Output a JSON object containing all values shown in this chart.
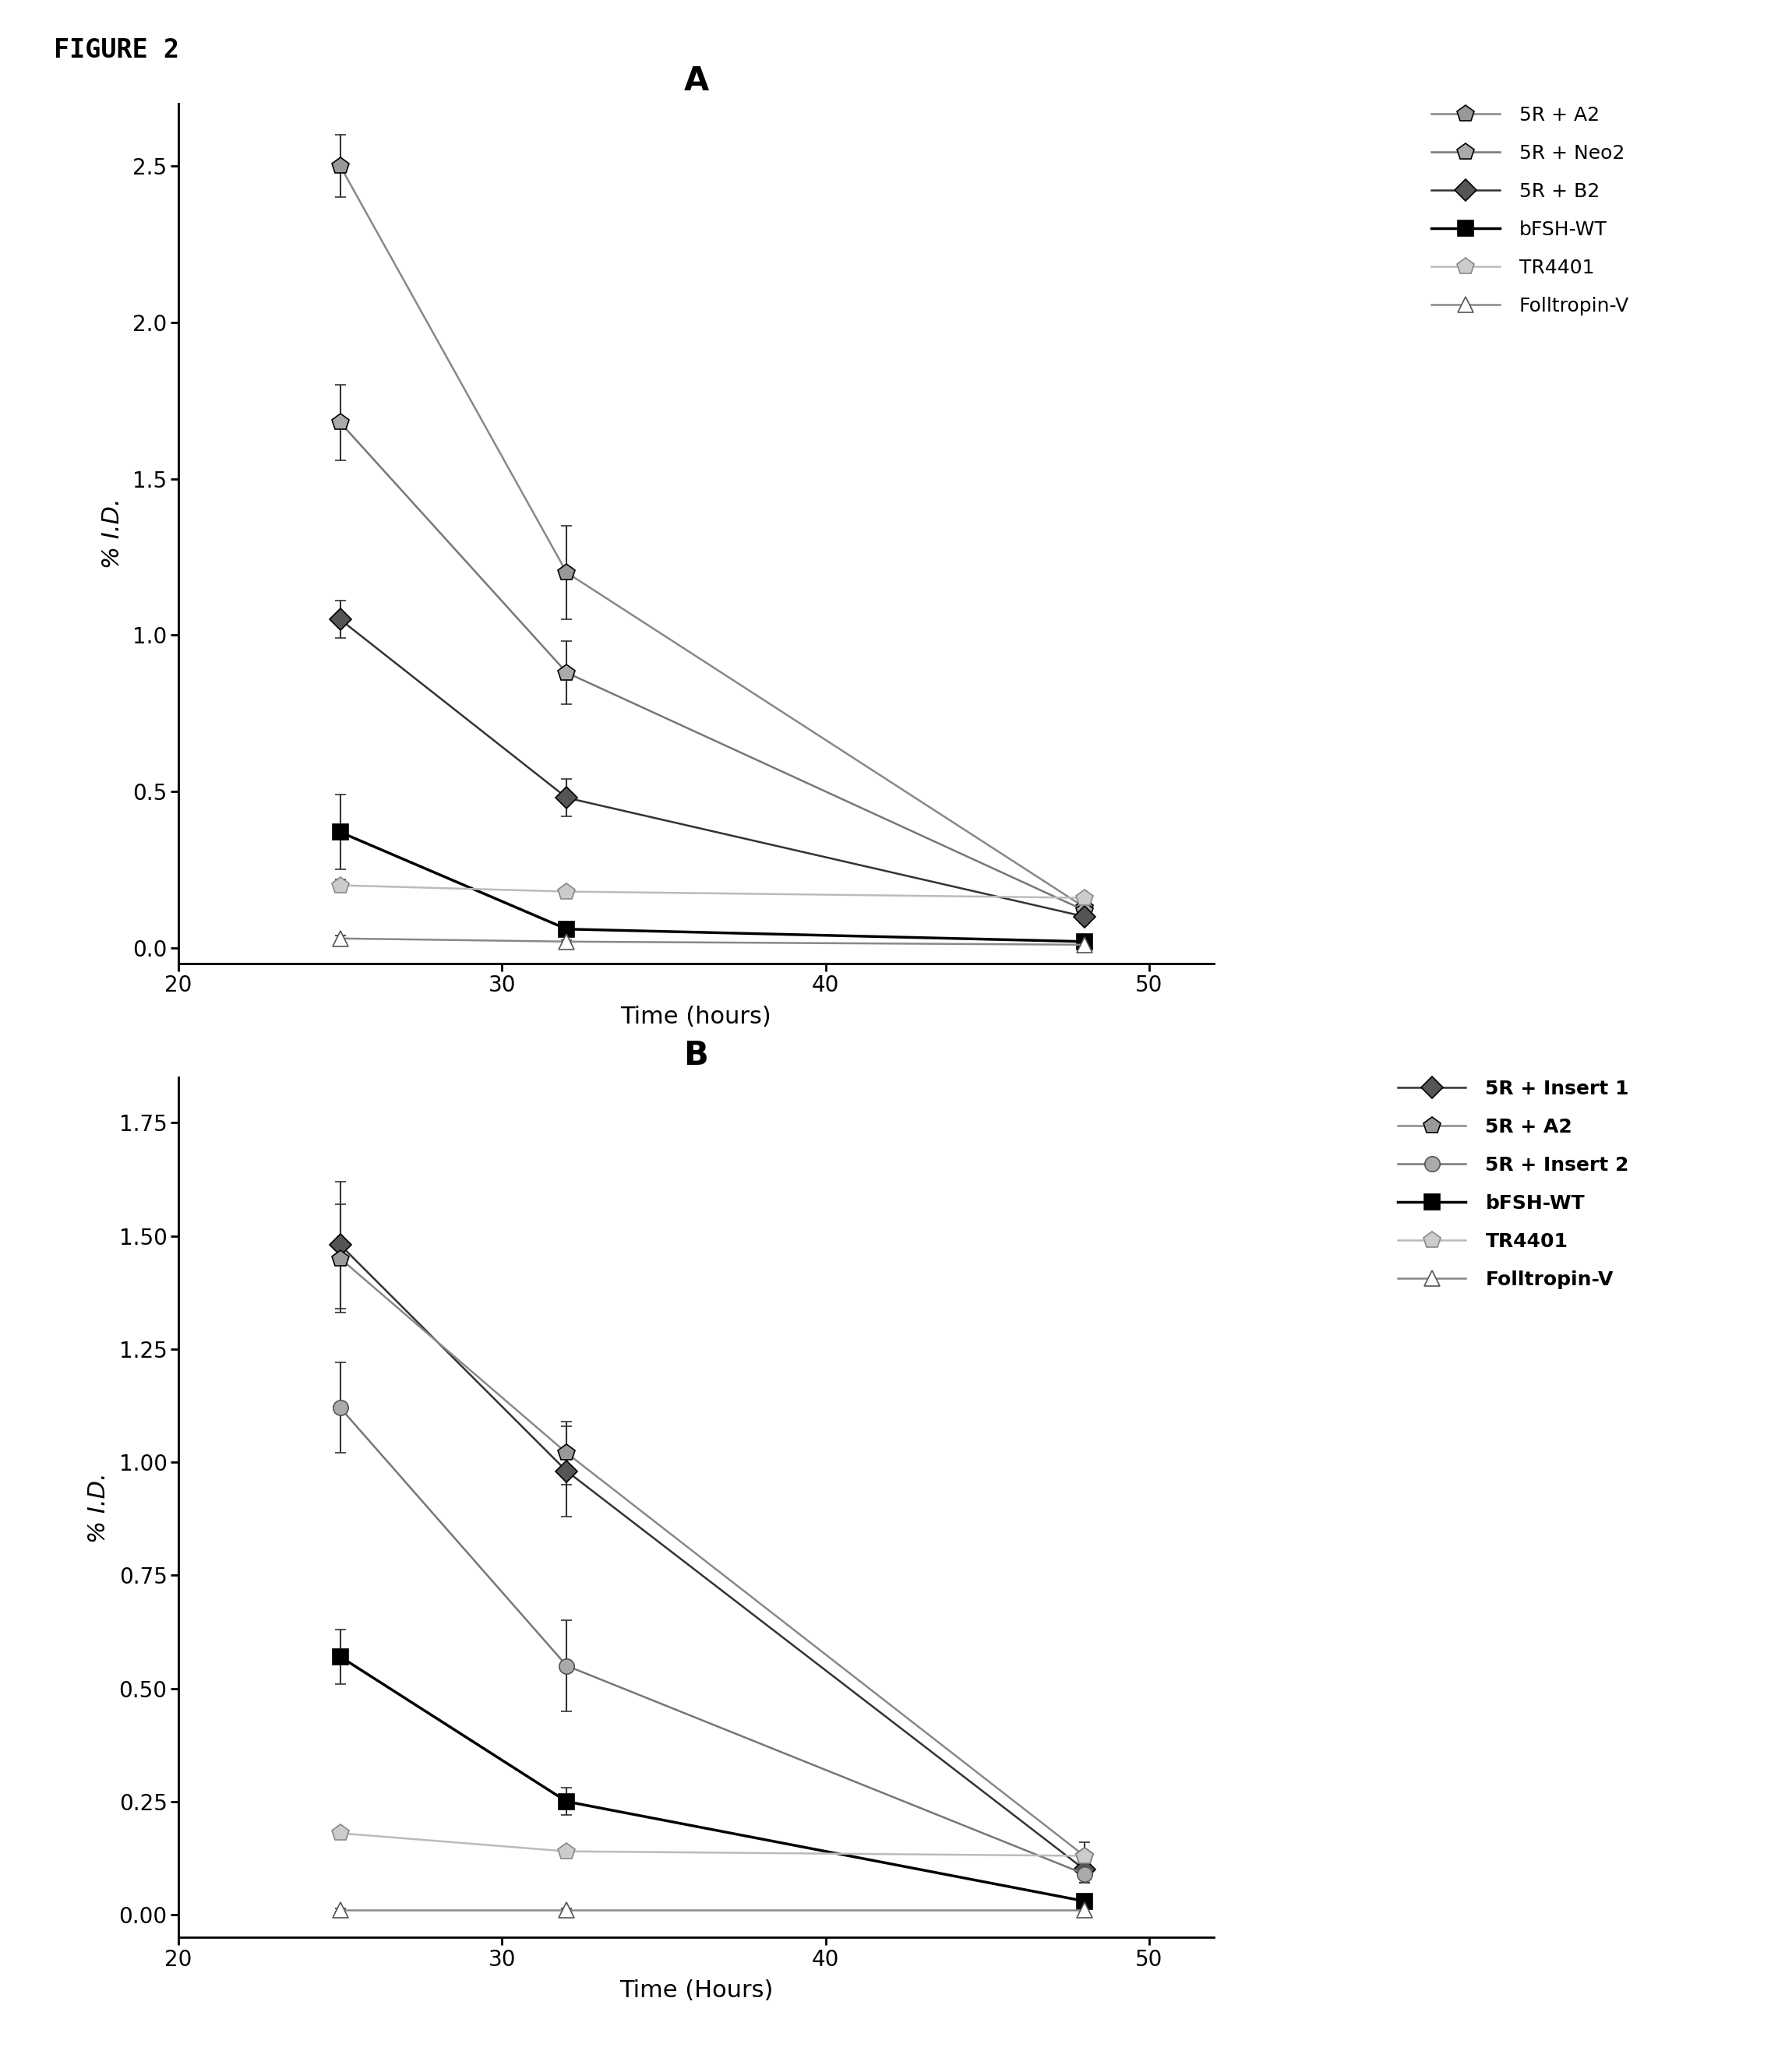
{
  "panel_A": {
    "title": "A",
    "xlabel": "Time (hours)",
    "ylabel": "% I.D.",
    "xlim": [
      20,
      52
    ],
    "xticks": [
      20,
      30,
      40,
      50
    ],
    "ylim": [
      -0.05,
      2.7
    ],
    "yticks": [
      0.0,
      0.5,
      1.0,
      1.5,
      2.0,
      2.5
    ],
    "series": [
      {
        "label": "5R + A2",
        "x": [
          25,
          32,
          48
        ],
        "y": [
          2.5,
          1.2,
          0.13
        ],
        "yerr": [
          0.1,
          0.15,
          0.03
        ],
        "marker": "p",
        "linestyle": "-",
        "color": "#888888",
        "mfc": "#999999",
        "mec": "#000000",
        "ms": 16,
        "linewidth": 1.8,
        "capsize": 5
      },
      {
        "label": "5R + Neo2",
        "x": [
          25,
          32,
          48
        ],
        "y": [
          1.68,
          0.88,
          0.12
        ],
        "yerr": [
          0.12,
          0.1,
          0.03
        ],
        "marker": "p",
        "linestyle": "-",
        "color": "#777777",
        "mfc": "#aaaaaa",
        "mec": "#000000",
        "ms": 16,
        "linewidth": 1.8,
        "capsize": 5
      },
      {
        "label": "5R + B2",
        "x": [
          25,
          32,
          48
        ],
        "y": [
          1.05,
          0.48,
          0.1
        ],
        "yerr": [
          0.06,
          0.06,
          0.02
        ],
        "marker": "D",
        "linestyle": "-",
        "color": "#333333",
        "mfc": "#555555",
        "mec": "#000000",
        "ms": 14,
        "linewidth": 1.8,
        "capsize": 5
      },
      {
        "label": "bFSH-WT",
        "x": [
          25,
          32,
          48
        ],
        "y": [
          0.37,
          0.06,
          0.02
        ],
        "yerr": [
          0.12,
          0.02,
          0.01
        ],
        "marker": "s",
        "linestyle": "-",
        "color": "#000000",
        "mfc": "#000000",
        "mec": "#000000",
        "ms": 14,
        "linewidth": 2.5,
        "capsize": 5
      },
      {
        "label": "TR4401",
        "x": [
          25,
          32,
          48
        ],
        "y": [
          0.2,
          0.18,
          0.16
        ],
        "yerr": [
          0.02,
          0.01,
          0.01
        ],
        "marker": "p",
        "linestyle": "-",
        "color": "#bbbbbb",
        "mfc": "#cccccc",
        "mec": "#888888",
        "ms": 16,
        "linewidth": 1.8,
        "capsize": 5
      },
      {
        "label": "Folltropin-V",
        "x": [
          25,
          32,
          48
        ],
        "y": [
          0.03,
          0.02,
          0.01
        ],
        "yerr": [
          0.01,
          0.005,
          0.005
        ],
        "marker": "^",
        "linestyle": "-",
        "color": "#888888",
        "mfc": "#ffffff",
        "mec": "#555555",
        "ms": 14,
        "linewidth": 1.8,
        "capsize": 5
      }
    ]
  },
  "panel_B": {
    "title": "B",
    "xlabel": "Time (Hours)",
    "ylabel": "% I.D.",
    "xlim": [
      20,
      52
    ],
    "xticks": [
      20,
      30,
      40,
      50
    ],
    "ylim": [
      -0.05,
      1.85
    ],
    "yticks": [
      0.0,
      0.25,
      0.5,
      0.75,
      1.0,
      1.25,
      1.5,
      1.75
    ],
    "series": [
      {
        "label": "5R + Insert 1",
        "x": [
          25,
          32,
          48
        ],
        "y": [
          1.48,
          0.98,
          0.1
        ],
        "yerr": [
          0.14,
          0.1,
          0.03
        ],
        "marker": "D",
        "linestyle": "-",
        "color": "#333333",
        "mfc": "#555555",
        "mec": "#000000",
        "ms": 14,
        "linewidth": 1.8,
        "capsize": 5
      },
      {
        "label": "5R + A2",
        "x": [
          25,
          32,
          48
        ],
        "y": [
          1.45,
          1.02,
          0.13
        ],
        "yerr": [
          0.12,
          0.07,
          0.03
        ],
        "marker": "p",
        "linestyle": "-",
        "color": "#888888",
        "mfc": "#999999",
        "mec": "#000000",
        "ms": 16,
        "linewidth": 1.8,
        "capsize": 5
      },
      {
        "label": "5R + Insert 2",
        "x": [
          25,
          32,
          48
        ],
        "y": [
          1.12,
          0.55,
          0.09
        ],
        "yerr": [
          0.1,
          0.1,
          0.02
        ],
        "marker": "o",
        "linestyle": "-",
        "color": "#777777",
        "mfc": "#aaaaaa",
        "mec": "#555555",
        "ms": 14,
        "linewidth": 1.8,
        "capsize": 5
      },
      {
        "label": "bFSH-WT",
        "x": [
          25,
          32,
          48
        ],
        "y": [
          0.57,
          0.25,
          0.03
        ],
        "yerr": [
          0.06,
          0.03,
          0.01
        ],
        "marker": "s",
        "linestyle": "-",
        "color": "#000000",
        "mfc": "#000000",
        "mec": "#000000",
        "ms": 14,
        "linewidth": 2.5,
        "capsize": 5
      },
      {
        "label": "TR4401",
        "x": [
          25,
          32,
          48
        ],
        "y": [
          0.18,
          0.14,
          0.13
        ],
        "yerr": [
          0.01,
          0.01,
          0.01
        ],
        "marker": "p",
        "linestyle": "-",
        "color": "#bbbbbb",
        "mfc": "#cccccc",
        "mec": "#888888",
        "ms": 16,
        "linewidth": 1.8,
        "capsize": 5
      },
      {
        "label": "Folltropin-V",
        "x": [
          25,
          32,
          48
        ],
        "y": [
          0.01,
          0.01,
          0.01
        ],
        "yerr": [
          0.003,
          0.003,
          0.003
        ],
        "marker": "^",
        "linestyle": "-",
        "color": "#888888",
        "mfc": "#ffffff",
        "mec": "#555555",
        "ms": 14,
        "linewidth": 1.8,
        "capsize": 5
      }
    ]
  },
  "figure_label": "FIGURE 2",
  "background_color": "#ffffff"
}
